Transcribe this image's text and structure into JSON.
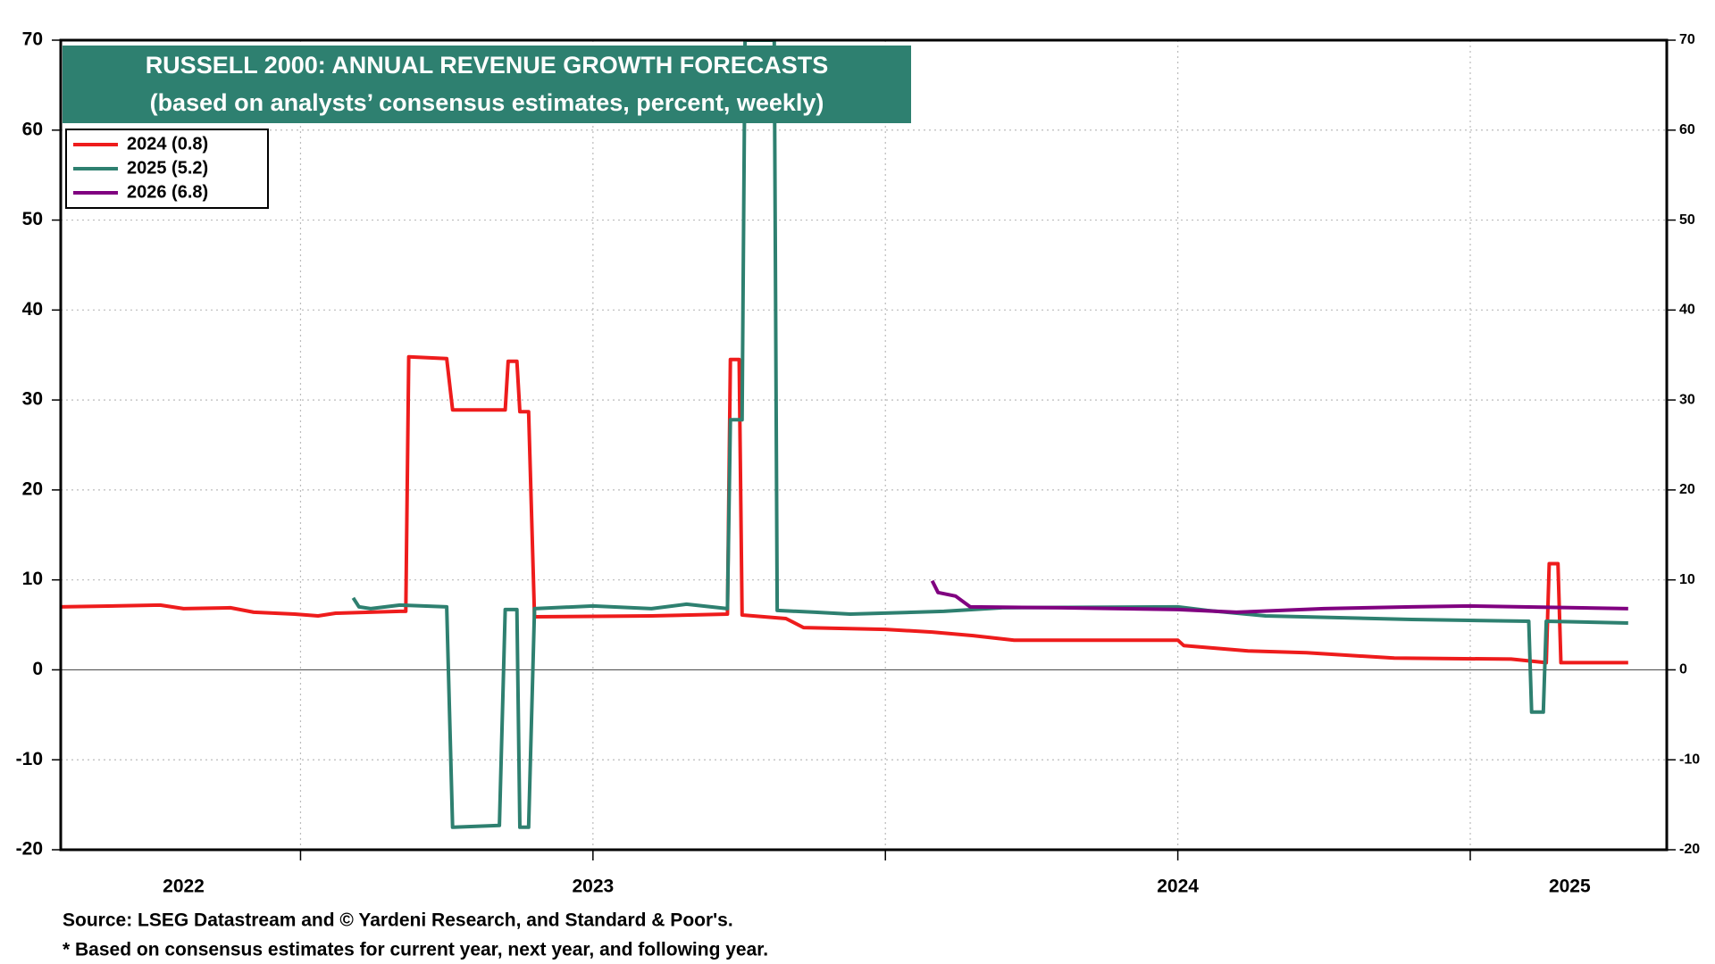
{
  "chart_data": {
    "type": "line",
    "title": "RUSSELL 2000: ANNUAL REVENUE GROWTH FORECASTS",
    "subtitle": "(based on analysts’ consensus estimates, percent, weekly)",
    "notes": [
      "Source: LSEG Datastream and © Yardeni Research, and Standard & Poor's.",
      "* Based on consensus estimates for current year, next year, and following year."
    ],
    "xlim": [
      2022.59,
      2025.336
    ],
    "xticks": [
      {
        "value": 2022.8,
        "label": "2022"
      },
      {
        "value": 2023.5,
        "label": "2023"
      },
      {
        "value": 2024.5,
        "label": "2024"
      },
      {
        "value": 2025.17,
        "label": "2025"
      }
    ],
    "x_gridlines": [
      2023,
      2023.5,
      2024,
      2024.5,
      2025
    ],
    "ylim": [
      -20,
      70
    ],
    "yticks": [
      -20,
      -10,
      0,
      10,
      20,
      30,
      40,
      50,
      60,
      70
    ],
    "y2lim": [
      -20,
      70
    ],
    "y2ticks": [
      -20,
      -10,
      0,
      10,
      20,
      30,
      40,
      50,
      60,
      70
    ],
    "grid": true,
    "legend": "upper left",
    "series": [
      {
        "name": "2024 (0.8)",
        "color": "#ee1c1c",
        "x": [
          2022.59,
          2022.76,
          2022.8,
          2022.88,
          2022.92,
          2022.99,
          2023.03,
          2023.06,
          2023.17,
          2023.18,
          2023.185,
          2023.25,
          2023.26,
          2023.35,
          2023.355,
          2023.37,
          2023.375,
          2023.39,
          2023.4,
          2023.6,
          2023.73,
          2023.735,
          2023.75,
          2023.755,
          2023.83,
          2023.86,
          2024.0,
          2024.08,
          2024.15,
          2024.22,
          2024.5,
          2024.51,
          2024.62,
          2024.72,
          2024.87,
          2025.07,
          2025.13,
          2025.135,
          2025.15,
          2025.155,
          2025.27
        ],
        "values": [
          7.0,
          7.2,
          6.8,
          6.9,
          6.4,
          6.2,
          6.0,
          6.3,
          6.5,
          6.5,
          34.8,
          34.6,
          28.9,
          28.9,
          34.3,
          34.3,
          28.7,
          28.7,
          5.9,
          6.0,
          6.2,
          34.5,
          34.5,
          6.1,
          5.7,
          4.7,
          4.5,
          4.2,
          3.8,
          3.3,
          3.3,
          2.7,
          2.1,
          1.9,
          1.3,
          1.2,
          0.8,
          11.8,
          11.8,
          0.8,
          0.8
        ]
      },
      {
        "name": "2025 (5.2)",
        "color": "#2e8070",
        "x": [
          2023.09,
          2023.1,
          2023.12,
          2023.17,
          2023.25,
          2023.26,
          2023.34,
          2023.35,
          2023.37,
          2023.375,
          2023.39,
          2023.4,
          2023.5,
          2023.6,
          2023.66,
          2023.73,
          2023.735,
          2023.755,
          2023.76,
          2023.81,
          2023.815,
          2023.88,
          2023.94,
          2024.1,
          2024.2,
          2024.5,
          2024.55,
          2024.65,
          2024.9,
          2025.1,
          2025.105,
          2025.125,
          2025.13,
          2025.27
        ],
        "values": [
          8.0,
          7.0,
          6.8,
          7.2,
          7.0,
          -17.5,
          -17.3,
          6.7,
          6.7,
          -17.5,
          -17.5,
          6.8,
          7.1,
          6.8,
          7.3,
          6.8,
          27.8,
          27.8,
          70,
          70,
          6.6,
          6.4,
          6.2,
          6.5,
          6.9,
          7.0,
          6.6,
          6.0,
          5.6,
          5.4,
          -4.7,
          -4.7,
          5.4,
          5.2
        ]
      },
      {
        "name": "2026 (6.8)",
        "color": "#800080",
        "x": [
          2024.08,
          2024.09,
          2024.12,
          2024.145,
          2024.3,
          2024.5,
          2024.6,
          2024.75,
          2024.9,
          2025.0,
          2025.27
        ],
        "values": [
          9.9,
          8.6,
          8.2,
          7.0,
          6.9,
          6.7,
          6.4,
          6.8,
          7.0,
          7.1,
          6.8
        ]
      }
    ]
  }
}
